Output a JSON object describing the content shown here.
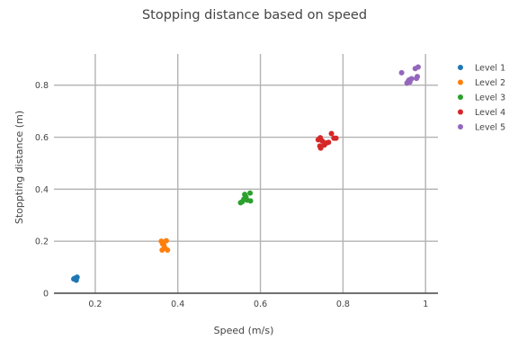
{
  "chart_data": {
    "type": "scatter",
    "title": "Stopping distance based on speed",
    "xlabel": "Speed (m/s)",
    "ylabel": "Stoppting distance (m)",
    "xlim": [
      0.1,
      1.03
    ],
    "ylim": [
      0,
      0.92
    ],
    "xticks": [
      0.2,
      0.4,
      0.6,
      0.8,
      1
    ],
    "xtick_labels": [
      "0.2",
      "0.4",
      "0.6",
      "0.8",
      "1"
    ],
    "yticks": [
      0,
      0.2,
      0.4,
      0.6,
      0.8
    ],
    "ytick_labels": [
      "0",
      "0.2",
      "0.4",
      "0.6",
      "0.8"
    ],
    "grid": true,
    "legend_position": "top-right",
    "series": [
      {
        "name": "Level 1",
        "color": "#1f77b4",
        "points": [
          [
            0.148,
            0.055
          ],
          [
            0.152,
            0.058
          ],
          [
            0.156,
            0.062
          ],
          [
            0.154,
            0.05
          ],
          [
            0.15,
            0.057
          ],
          [
            0.155,
            0.06
          ]
        ]
      },
      {
        "name": "Level 2",
        "color": "#ff7f0e",
        "points": [
          [
            0.36,
            0.2
          ],
          [
            0.364,
            0.195
          ],
          [
            0.372,
            0.202
          ],
          [
            0.366,
            0.185
          ],
          [
            0.368,
            0.176
          ],
          [
            0.362,
            0.166
          ],
          [
            0.375,
            0.166
          ],
          [
            0.363,
            0.19
          ]
        ]
      },
      {
        "name": "Level 3",
        "color": "#2ca02c",
        "points": [
          [
            0.552,
            0.348
          ],
          [
            0.556,
            0.352
          ],
          [
            0.56,
            0.362
          ],
          [
            0.562,
            0.38
          ],
          [
            0.575,
            0.385
          ],
          [
            0.568,
            0.358
          ],
          [
            0.576,
            0.355
          ],
          [
            0.565,
            0.37
          ]
        ]
      },
      {
        "name": "Level 4",
        "color": "#d62728",
        "points": [
          [
            0.74,
            0.59
          ],
          [
            0.745,
            0.598
          ],
          [
            0.744,
            0.566
          ],
          [
            0.746,
            0.558
          ],
          [
            0.755,
            0.57
          ],
          [
            0.76,
            0.578
          ],
          [
            0.765,
            0.58
          ],
          [
            0.772,
            0.614
          ],
          [
            0.778,
            0.596
          ],
          [
            0.783,
            0.596
          ],
          [
            0.75,
            0.585
          ]
        ]
      },
      {
        "name": "Level 5",
        "color": "#9467bd",
        "points": [
          [
            0.942,
            0.848
          ],
          [
            0.955,
            0.808
          ],
          [
            0.958,
            0.815
          ],
          [
            0.96,
            0.82
          ],
          [
            0.962,
            0.812
          ],
          [
            0.966,
            0.825
          ],
          [
            0.975,
            0.864
          ],
          [
            0.982,
            0.87
          ],
          [
            0.978,
            0.826
          ],
          [
            0.98,
            0.833
          ]
        ]
      }
    ]
  }
}
